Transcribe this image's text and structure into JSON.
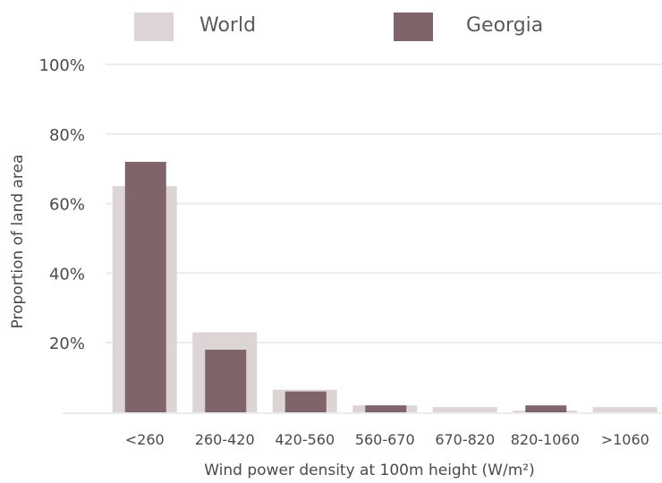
{
  "chart_data": {
    "type": "bar",
    "title": "",
    "xlabel": "Wind power density at 100m height (W/m²)",
    "ylabel": "Proportion of land area",
    "categories": [
      "<260",
      "260-420",
      "420-560",
      "560-670",
      "670-820",
      "820-1060",
      ">1060"
    ],
    "series": [
      {
        "name": "World",
        "color": "#ddd5d5",
        "values": [
          65,
          23,
          6.5,
          2,
          1.5,
          0.5,
          1.5
        ]
      },
      {
        "name": "Georgia",
        "color": "#7f656a",
        "values": [
          72,
          18,
          6,
          2,
          0,
          2,
          0
        ]
      }
    ],
    "ylim": [
      0,
      100
    ],
    "yticks": [
      {
        "value": 20,
        "label": "20%"
      },
      {
        "value": 40,
        "label": "40%"
      },
      {
        "value": 60,
        "label": "60%"
      },
      {
        "value": 80,
        "label": "80%"
      },
      {
        "value": 100,
        "label": "100%"
      }
    ],
    "grid": true,
    "legend_position": "top",
    "overlapping_bars": true
  }
}
